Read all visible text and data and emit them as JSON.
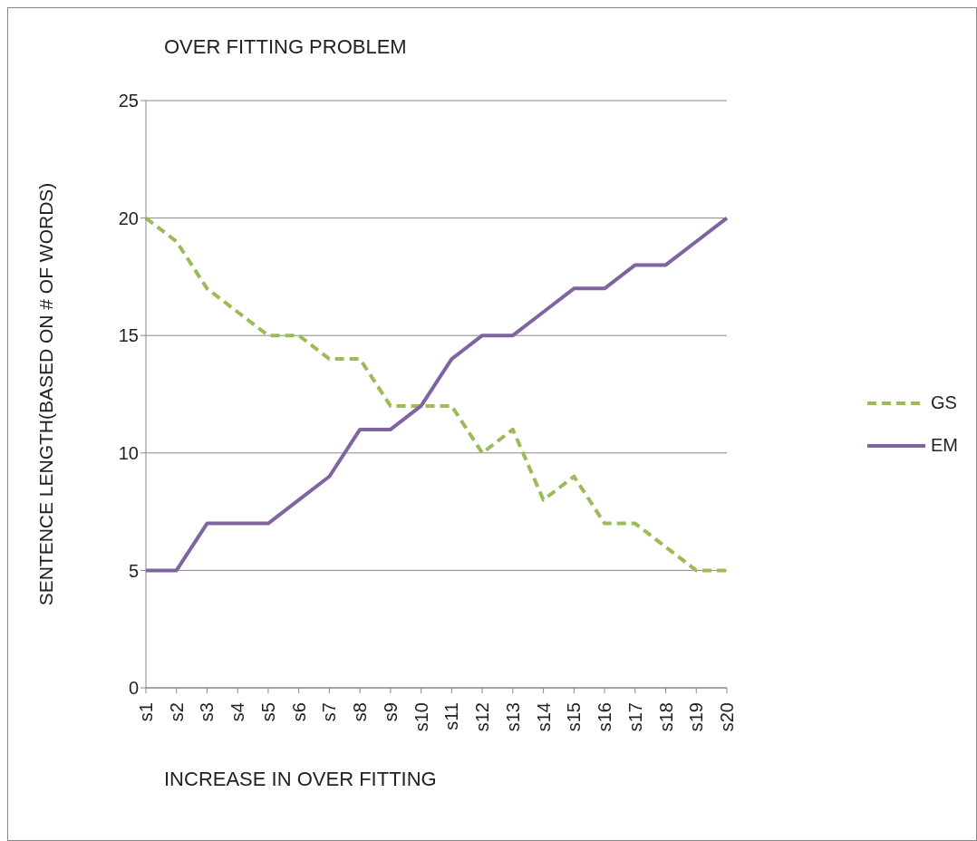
{
  "chart_data": {
    "type": "line",
    "title": "OVER FITTING PROBLEM",
    "xlabel": "INCREASE IN OVER FITTING",
    "ylabel": "SENTENCE LENGTH(BASED ON # OF WORDS)",
    "categories": [
      "s1",
      "s2",
      "s3",
      "s4",
      "s5",
      "s6",
      "s7",
      "s8",
      "s9",
      "s10",
      "s11",
      "s12",
      "s13",
      "s14",
      "s15",
      "s16",
      "s17",
      "s18",
      "s19",
      "s20"
    ],
    "series": [
      {
        "name": "GS",
        "color": "#9bbb59",
        "line_style": "dashed",
        "values": [
          20,
          19,
          17,
          16,
          15,
          15,
          14,
          14,
          12,
          12,
          12,
          10,
          11,
          8,
          9,
          7,
          7,
          6,
          5,
          5
        ]
      },
      {
        "name": "EM",
        "color": "#8064a2",
        "line_style": "solid",
        "values": [
          5,
          5,
          7,
          7,
          7,
          8,
          9,
          11,
          11,
          12,
          14,
          15,
          15,
          16,
          17,
          17,
          18,
          18,
          19,
          20
        ]
      }
    ],
    "ylim": [
      0,
      25
    ],
    "yticks": [
      0,
      5,
      10,
      15,
      20,
      25
    ],
    "grid": "y",
    "legend": "right",
    "marker": "none"
  }
}
